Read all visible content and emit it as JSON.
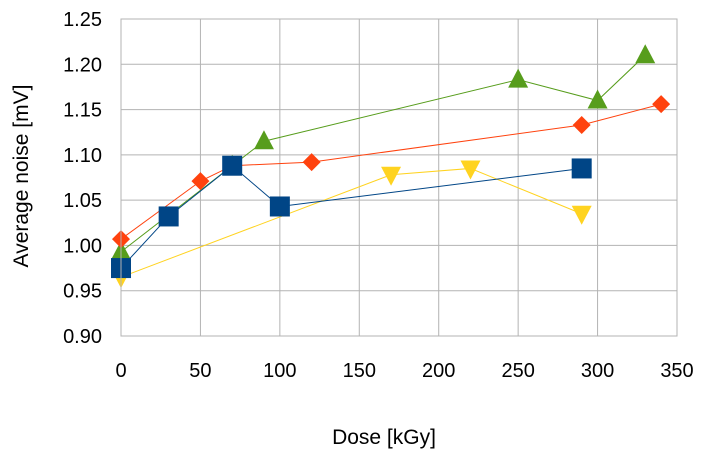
{
  "chart_data": {
    "type": "scatter",
    "title": "",
    "xlabel": "Dose [kGy]",
    "ylabel": "Average noise [mV]",
    "xlim": [
      0,
      350
    ],
    "ylim": [
      0.9,
      1.25
    ],
    "x_ticks": [
      0,
      50,
      100,
      150,
      200,
      250,
      300,
      350
    ],
    "y_ticks": [
      0.9,
      0.95,
      1.0,
      1.05,
      1.1,
      1.15,
      1.2,
      1.25
    ],
    "x_tick_labels": [
      "0",
      "50",
      "100",
      "150",
      "200",
      "250",
      "300",
      "350"
    ],
    "y_tick_labels": [
      "0.90",
      "0.95",
      "1.00",
      "1.05",
      "1.10",
      "1.15",
      "1.20",
      "1.25"
    ],
    "grid": true,
    "legend": "none",
    "series": [
      {
        "name": "green-triangle",
        "color": "#579d1c",
        "marker": "triangle-up",
        "points": [
          [
            0,
            0.993
          ],
          [
            70,
            1.088
          ],
          [
            90,
            1.115
          ],
          [
            250,
            1.183
          ],
          [
            300,
            1.16
          ],
          [
            330,
            1.21
          ]
        ]
      },
      {
        "name": "orange-diamond",
        "color": "#ff420e",
        "marker": "diamond",
        "points": [
          [
            0,
            1.007
          ],
          [
            50,
            1.071
          ],
          [
            70,
            1.088
          ],
          [
            120,
            1.092
          ],
          [
            290,
            1.133
          ],
          [
            340,
            1.156
          ]
        ]
      },
      {
        "name": "yellow-triangle-down",
        "color": "#ffd320",
        "marker": "triangle-down",
        "points": [
          [
            0,
            0.965
          ],
          [
            170,
            1.078
          ],
          [
            220,
            1.085
          ],
          [
            290,
            1.035
          ]
        ]
      },
      {
        "name": "blue-square",
        "color": "#004586",
        "marker": "square",
        "points": [
          [
            0,
            0.975
          ],
          [
            30,
            1.032
          ],
          [
            70,
            1.088
          ],
          [
            100,
            1.043
          ],
          [
            290,
            1.085
          ]
        ]
      }
    ]
  }
}
